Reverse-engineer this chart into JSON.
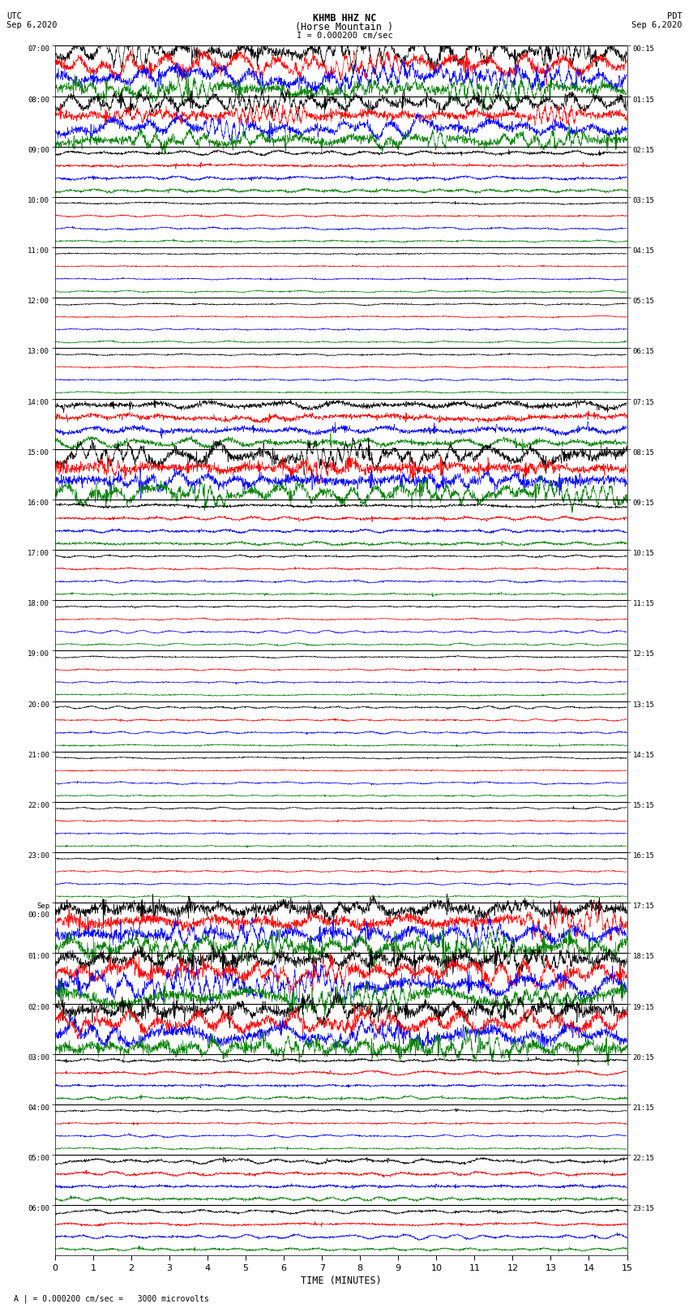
{
  "title_line1": "KHMB HHZ NC",
  "title_line2": "(Horse Mountain )",
  "scale_label": "I = 0.000200 cm/sec",
  "utc_label": "UTC",
  "pdt_label": "PDT",
  "date_left": "Sep 6,2020",
  "date_right": "Sep 6,2020",
  "xlabel": "TIME (MINUTES)",
  "footer_note": "A | = 0.000200 cm/sec =   3000 microvolts",
  "bg_color": "#ffffff",
  "trace_colors": [
    "black",
    "red",
    "blue",
    "green"
  ],
  "xlim": [
    0,
    15
  ],
  "xticks": [
    0,
    1,
    2,
    3,
    4,
    5,
    6,
    7,
    8,
    9,
    10,
    11,
    12,
    13,
    14,
    15
  ],
  "fig_width": 8.5,
  "fig_height": 16.13,
  "left_times": [
    "07:00",
    "08:00",
    "09:00",
    "10:00",
    "11:00",
    "12:00",
    "13:00",
    "14:00",
    "15:00",
    "16:00",
    "17:00",
    "18:00",
    "19:00",
    "20:00",
    "21:00",
    "22:00",
    "23:00",
    "Sep\n00:00",
    "01:00",
    "02:00",
    "03:00",
    "04:00",
    "05:00",
    "06:00"
  ],
  "right_times": [
    "00:15",
    "01:15",
    "02:15",
    "03:15",
    "04:15",
    "05:15",
    "06:15",
    "07:15",
    "08:15",
    "09:15",
    "10:15",
    "11:15",
    "12:15",
    "13:15",
    "14:15",
    "15:15",
    "16:15",
    "17:15",
    "18:15",
    "19:15",
    "20:15",
    "21:15",
    "22:15",
    "23:15"
  ],
  "hour_noise": [
    0.9,
    0.75,
    0.22,
    0.12,
    0.1,
    0.1,
    0.1,
    0.45,
    0.85,
    0.22,
    0.12,
    0.1,
    0.1,
    0.12,
    0.1,
    0.1,
    0.1,
    0.95,
    0.95,
    0.95,
    0.18,
    0.12,
    0.22,
    0.18
  ],
  "amp_scale": 0.42
}
